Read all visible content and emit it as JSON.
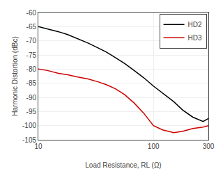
{
  "chart_data": {
    "type": "line",
    "xlabel": "Load Resistance, RL (Ω)",
    "ylabel": "Harmonic Distortion (dBc)",
    "x": [
      10,
      12,
      15,
      18,
      22,
      27,
      33,
      39,
      47,
      56,
      68,
      82,
      100,
      120,
      150,
      180,
      220,
      270,
      300
    ],
    "series": [
      {
        "name": "HD2",
        "color": "#000000",
        "values": [
          -65.0,
          -65.8,
          -66.8,
          -67.8,
          -69.2,
          -70.8,
          -72.5,
          -74.0,
          -76.0,
          -78.0,
          -80.5,
          -83.0,
          -86.0,
          -88.5,
          -91.5,
          -94.5,
          -97.0,
          -98.5,
          -97.5
        ]
      },
      {
        "name": "HD3",
        "color": "#cc0000",
        "values": [
          -80.0,
          -80.5,
          -81.5,
          -82.0,
          -82.8,
          -83.5,
          -84.5,
          -85.5,
          -87.0,
          -89.0,
          -92.0,
          -95.5,
          -100.0,
          -101.5,
          -102.5,
          -102.0,
          -101.0,
          -100.5,
          -100.0
        ]
      }
    ],
    "log": "x",
    "xlim": [
      10,
      300
    ],
    "xticks": [
      10,
      100,
      300
    ],
    "ylim": [
      -105,
      -60
    ],
    "yticks": [
      -105,
      -100,
      -95,
      -90,
      -85,
      -80,
      -75,
      -70,
      -65,
      -60
    ],
    "grid": true,
    "legend": "upper right"
  }
}
